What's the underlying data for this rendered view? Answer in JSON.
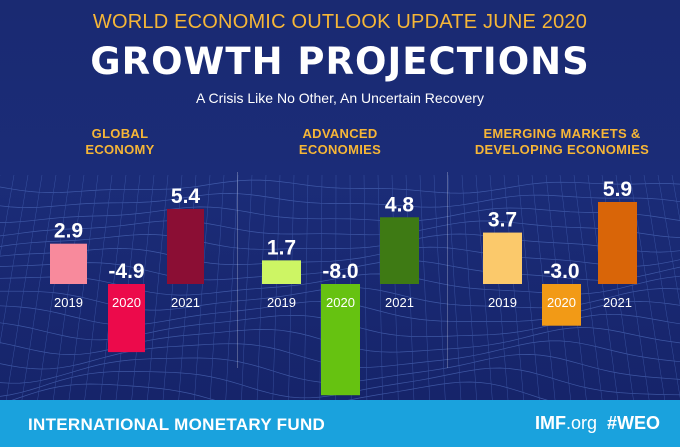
{
  "header": {
    "edition": "WORLD ECONOMIC OUTLOOK UPDATE JUNE 2020",
    "title": "GROWTH PROJECTIONS",
    "tagline": "A Crisis Like No Other, An Uncertain Recovery"
  },
  "footer": {
    "organization": "INTERNATIONAL MONETARY FUND",
    "site_bold": "IMF",
    "site_rest": ".org",
    "hashtag": "#WEO"
  },
  "chart_data": [
    {
      "type": "bar",
      "title": "GLOBAL ECONOMY",
      "categories": [
        "2019",
        "2020",
        "2021"
      ],
      "values": [
        2.9,
        -4.9,
        5.4
      ],
      "value_labels": [
        "2.9",
        "-4.9",
        "5.4"
      ],
      "colors": [
        "#f88a9c",
        "#ec0a4b",
        "#8b0e34"
      ]
    },
    {
      "type": "bar",
      "title": "ADVANCED ECONOMIES",
      "categories": [
        "2019",
        "2020",
        "2021"
      ],
      "values": [
        1.7,
        -8.0,
        4.8
      ],
      "value_labels": [
        "1.7",
        "-8.0",
        "4.8"
      ],
      "colors": [
        "#cdf564",
        "#66c211",
        "#3e7a14"
      ]
    },
    {
      "type": "bar",
      "title": "EMERGING MARKETS & DEVELOPING ECONOMIES",
      "categories": [
        "2019",
        "2020",
        "2021"
      ],
      "values": [
        3.7,
        -3.0,
        5.9
      ],
      "value_labels": [
        "3.7",
        "-3.0",
        "5.9"
      ],
      "colors": [
        "#fbc96b",
        "#f29a16",
        "#d96508"
      ]
    }
  ]
}
